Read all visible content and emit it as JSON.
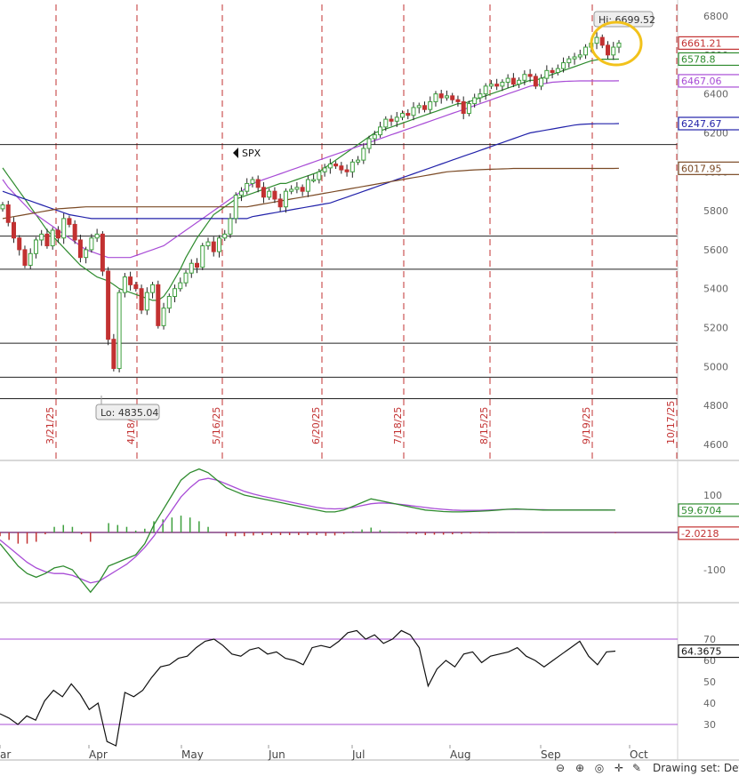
{
  "colors": {
    "up": "#3d9f3d",
    "down": "#c23131",
    "green_ma": "#2e8b2e",
    "purple_ma": "#a84cd6",
    "blue_ma": "#2222aa",
    "brown_ma": "#7b4a25",
    "vline": "#c23131",
    "hline": "#222222",
    "highlight": "#f2c21b"
  },
  "chart_data": [
    {
      "type": "candlestick",
      "symbol_label": "SPX",
      "annotations": {
        "high": "Hi: 6699.52",
        "low": "Lo: 4835.04",
        "high_value": 6699.52,
        "low_value": 4835.04
      },
      "y_axis": {
        "ticks": [
          "6800",
          "6600",
          "6400",
          "6200",
          "6000",
          "5800",
          "5600",
          "5400",
          "5200",
          "5000",
          "4800",
          "4600"
        ],
        "ylim": [
          4500,
          6850
        ]
      },
      "price_badges": [
        {
          "label": "6661.21",
          "value": 6661.21,
          "color": "#c23131"
        },
        {
          "label": "6578.8",
          "value": 6578.8,
          "color": "#2e8b2e"
        },
        {
          "label": "6467.06",
          "value": 6467.06,
          "color": "#a84cd6"
        },
        {
          "label": "6247.67",
          "value": 6247.67,
          "color": "#2222aa"
        },
        {
          "label": "6017.95",
          "value": 6017.95,
          "color": "#7b4a25"
        }
      ],
      "date_lines": [
        "3/21/25",
        "4/18/25",
        "5/16/25",
        "6/20/25",
        "7/18/25",
        "8/15/25",
        "9/19/25",
        "10/17/25"
      ],
      "horizontal_levels": [
        6140,
        5670,
        5500,
        5120,
        4945,
        4835
      ],
      "closes": [
        5830,
        5740,
        5660,
        5600,
        5520,
        5580,
        5650,
        5680,
        5620,
        5700,
        5660,
        5760,
        5730,
        5650,
        5560,
        5600,
        5660,
        5680,
        5490,
        5140,
        4990,
        5380,
        5460,
        5420,
        5400,
        5290,
        5380,
        5420,
        5210,
        5300,
        5360,
        5400,
        5430,
        5480,
        5530,
        5510,
        5620,
        5640,
        5590,
        5660,
        5680,
        5760,
        5880,
        5900,
        5940,
        5960,
        5920,
        5870,
        5900,
        5860,
        5820,
        5900,
        5910,
        5920,
        5900,
        5960,
        5960,
        6000,
        6020,
        6040,
        6030,
        6010,
        6000,
        6050,
        6060,
        6120,
        6170,
        6190,
        6230,
        6270,
        6260,
        6280,
        6300,
        6290,
        6330,
        6340,
        6320,
        6360,
        6400,
        6380,
        6390,
        6370,
        6360,
        6300,
        6350,
        6380,
        6400,
        6440,
        6450,
        6440,
        6460,
        6480,
        6450,
        6470,
        6500,
        6490,
        6440,
        6480,
        6520,
        6510,
        6530,
        6560,
        6580,
        6590,
        6600,
        6640,
        6660,
        6690,
        6650,
        6600,
        6640,
        6661
      ],
      "overlays": [
        {
          "name": "green",
          "color": "#2e8b2e",
          "values": [
            6020,
            5980,
            5940,
            5900,
            5860,
            5820,
            5780,
            5740,
            5700,
            5670,
            5640,
            5610,
            5580,
            5550,
            5520,
            5500,
            5480,
            5460,
            5450,
            5440,
            5420,
            5400,
            5390,
            5380,
            5370,
            5360,
            5350,
            5340,
            5340,
            5360,
            5400,
            5450,
            5500,
            5560,
            5610,
            5660,
            5700,
            5740,
            5780,
            5800,
            5820,
            5840,
            5860,
            5870,
            5880,
            5890,
            5900,
            5910,
            5920,
            5930,
            5940,
            5940,
            5950,
            5960,
            5970,
            5980,
            5990,
            6000,
            6020,
            6040,
            6060,
            6080,
            6100,
            6120,
            6140,
            6160,
            6180,
            6200,
            6210,
            6220,
            6230,
            6240,
            6250,
            6260,
            6270,
            6280,
            6290,
            6300,
            6310,
            6320,
            6330,
            6340,
            6350,
            6350,
            6360,
            6370,
            6380,
            6390,
            6400,
            6410,
            6420,
            6430,
            6440,
            6450,
            6460,
            6470,
            6470,
            6480,
            6490,
            6500,
            6510,
            6520,
            6530,
            6540,
            6550,
            6560,
            6570,
            6575,
            6578,
            6578,
            6578,
            6578.8
          ]
        },
        {
          "name": "purple",
          "color": "#a84cd6",
          "values": [
            5960,
            5920,
            5890,
            5860,
            5830,
            5800,
            5780,
            5760,
            5740,
            5720,
            5700,
            5680,
            5660,
            5640,
            5620,
            5600,
            5590,
            5580,
            5570,
            5560,
            5560,
            5560,
            5560,
            5560,
            5570,
            5580,
            5590,
            5600,
            5610,
            5620,
            5640,
            5660,
            5680,
            5700,
            5720,
            5740,
            5760,
            5780,
            5800,
            5820,
            5840,
            5860,
            5880,
            5900,
            5920,
            5940,
            5950,
            5960,
            5970,
            5980,
            5990,
            6000,
            6010,
            6020,
            6030,
            6040,
            6050,
            6060,
            6070,
            6080,
            6090,
            6100,
            6110,
            6120,
            6130,
            6140,
            6150,
            6160,
            6170,
            6180,
            6190,
            6200,
            6210,
            6220,
            6230,
            6240,
            6250,
            6260,
            6270,
            6280,
            6290,
            6300,
            6310,
            6320,
            6330,
            6340,
            6350,
            6360,
            6370,
            6380,
            6390,
            6400,
            6410,
            6420,
            6430,
            6440,
            6445,
            6450,
            6455,
            6460,
            6462,
            6464,
            6465,
            6466,
            6467,
            6467,
            6467,
            6467,
            6467,
            6467,
            6467,
            6467.06
          ]
        },
        {
          "name": "blue",
          "color": "#2222aa",
          "values": [
            5900,
            5890,
            5880,
            5870,
            5860,
            5850,
            5840,
            5830,
            5820,
            5810,
            5800,
            5790,
            5780,
            5775,
            5770,
            5765,
            5760,
            5760,
            5760,
            5760,
            5760,
            5760,
            5760,
            5760,
            5760,
            5760,
            5760,
            5760,
            5760,
            5760,
            5760,
            5760,
            5760,
            5760,
            5760,
            5760,
            5760,
            5760,
            5760,
            5760,
            5760,
            5760,
            5760,
            5760,
            5760,
            5770,
            5775,
            5780,
            5785,
            5790,
            5795,
            5800,
            5805,
            5810,
            5815,
            5820,
            5825,
            5830,
            5835,
            5840,
            5850,
            5860,
            5870,
            5880,
            5890,
            5900,
            5910,
            5920,
            5930,
            5940,
            5950,
            5960,
            5970,
            5980,
            5990,
            6000,
            6010,
            6020,
            6030,
            6040,
            6050,
            6060,
            6070,
            6080,
            6090,
            6100,
            6110,
            6120,
            6130,
            6140,
            6150,
            6160,
            6170,
            6180,
            6190,
            6200,
            6205,
            6210,
            6215,
            6220,
            6225,
            6230,
            6235,
            6240,
            6243,
            6245,
            6246,
            6247,
            6247,
            6247,
            6247,
            6247.67
          ]
        },
        {
          "name": "brown",
          "color": "#7b4a25",
          "values": [
            5760,
            5765,
            5770,
            5775,
            5780,
            5785,
            5790,
            5795,
            5800,
            5805,
            5810,
            5812,
            5814,
            5816,
            5818,
            5820,
            5820,
            5820,
            5820,
            5820,
            5820,
            5820,
            5820,
            5820,
            5820,
            5820,
            5820,
            5820,
            5820,
            5820,
            5820,
            5820,
            5820,
            5820,
            5820,
            5820,
            5820,
            5820,
            5820,
            5820,
            5820,
            5820,
            5820,
            5820,
            5820,
            5825,
            5830,
            5835,
            5840,
            5845,
            5850,
            5855,
            5860,
            5865,
            5870,
            5875,
            5880,
            5885,
            5890,
            5895,
            5900,
            5905,
            5910,
            5915,
            5920,
            5925,
            5930,
            5935,
            5940,
            5945,
            5950,
            5955,
            5960,
            5965,
            5970,
            5975,
            5980,
            5985,
            5990,
            5995,
            6000,
            6002,
            6004,
            6006,
            6008,
            6010,
            6011,
            6012,
            6013,
            6014,
            6015,
            6016,
            6017,
            6017,
            6017,
            6017,
            6017,
            6017,
            6017,
            6017,
            6017,
            6017,
            6017,
            6017,
            6017,
            6017,
            6017,
            6017,
            6017,
            6017,
            6017,
            6017.95
          ]
        }
      ]
    },
    {
      "type": "line",
      "name": "macd-panel",
      "y_axis": {
        "ticks": [
          "100",
          "-100"
        ]
      },
      "price_badges": [
        {
          "label": "59.6704",
          "value": 59.6704,
          "color": "#2e8b2e"
        },
        {
          "label": "-2.0218",
          "value": -2.0218,
          "color": "#c23131"
        }
      ],
      "line1": [
        -30,
        -60,
        -90,
        -110,
        -120,
        -110,
        -95,
        -90,
        -100,
        -130,
        -160,
        -130,
        -90,
        -80,
        -70,
        -60,
        -30,
        20,
        60,
        100,
        140,
        160,
        170,
        160,
        140,
        120,
        110,
        100,
        95,
        90,
        85,
        80,
        75,
        70,
        65,
        60,
        55,
        55,
        60,
        70,
        80,
        90,
        85,
        80,
        75,
        70,
        65,
        60,
        58,
        56,
        55,
        55,
        56,
        57,
        58,
        60,
        62,
        63,
        62,
        61,
        60,
        60,
        60,
        60,
        60,
        60,
        60,
        60,
        59.67
      ],
      "line2": [
        -20,
        -40,
        -60,
        -80,
        -95,
        -105,
        -110,
        -110,
        -115,
        -125,
        -135,
        -130,
        -115,
        -100,
        -85,
        -65,
        -40,
        -10,
        25,
        60,
        95,
        120,
        140,
        145,
        140,
        130,
        120,
        110,
        103,
        97,
        92,
        87,
        82,
        77,
        72,
        67,
        64,
        63,
        64,
        67,
        72,
        77,
        79,
        78,
        76,
        73,
        70,
        67,
        64,
        62,
        60,
        59,
        59,
        59,
        60,
        61,
        62,
        62,
        62,
        61,
        61,
        60,
        60,
        60,
        60,
        60,
        60,
        60,
        59.67
      ],
      "histogram": [
        -10,
        -20,
        -30,
        -30,
        -25,
        -5,
        15,
        20,
        15,
        -5,
        -25,
        0,
        25,
        20,
        15,
        5,
        10,
        30,
        35,
        40,
        45,
        40,
        30,
        15,
        0,
        -10,
        -10,
        -10,
        -8,
        -7,
        -7,
        -7,
        -7,
        -7,
        -7,
        -7,
        -9,
        -8,
        -4,
        3,
        8,
        13,
        6,
        2,
        -1,
        -3,
        -5,
        -7,
        -6,
        -6,
        -5,
        -4,
        -3,
        -2,
        -2,
        -1,
        0,
        1,
        0,
        0,
        -1,
        0,
        0,
        0,
        0,
        0,
        0,
        0,
        -2.02
      ]
    },
    {
      "type": "line",
      "name": "rsi-panel",
      "y_axis": {
        "ticks": [
          "70",
          "60",
          "50",
          "40",
          "30"
        ],
        "ylim": [
          18,
          80
        ]
      },
      "price_badges": [
        {
          "label": "64.3675",
          "value": 64.3675,
          "color": "#111111"
        }
      ],
      "values": [
        35,
        33,
        30,
        34,
        32,
        41,
        46,
        43,
        49,
        44,
        37,
        40,
        22,
        20,
        45,
        43,
        46,
        52,
        57,
        58,
        61,
        62,
        66,
        69,
        70,
        67,
        63,
        62,
        65,
        66,
        63,
        64,
        61,
        60,
        58,
        66,
        67,
        66,
        69,
        73,
        74,
        70,
        72,
        68,
        70,
        74,
        72,
        66,
        48,
        56,
        60,
        57,
        63,
        64,
        59,
        62,
        63,
        64,
        66,
        62,
        60,
        57,
        60,
        63,
        66,
        69,
        62,
        58,
        64,
        64.37
      ],
      "x_labels": [
        "ar",
        "Apr",
        "May",
        "Jun",
        "Jul",
        "Aug",
        "Sep",
        "Oct"
      ]
    }
  ],
  "toolbar": {
    "drawing_label": "Drawing set: Defau"
  }
}
